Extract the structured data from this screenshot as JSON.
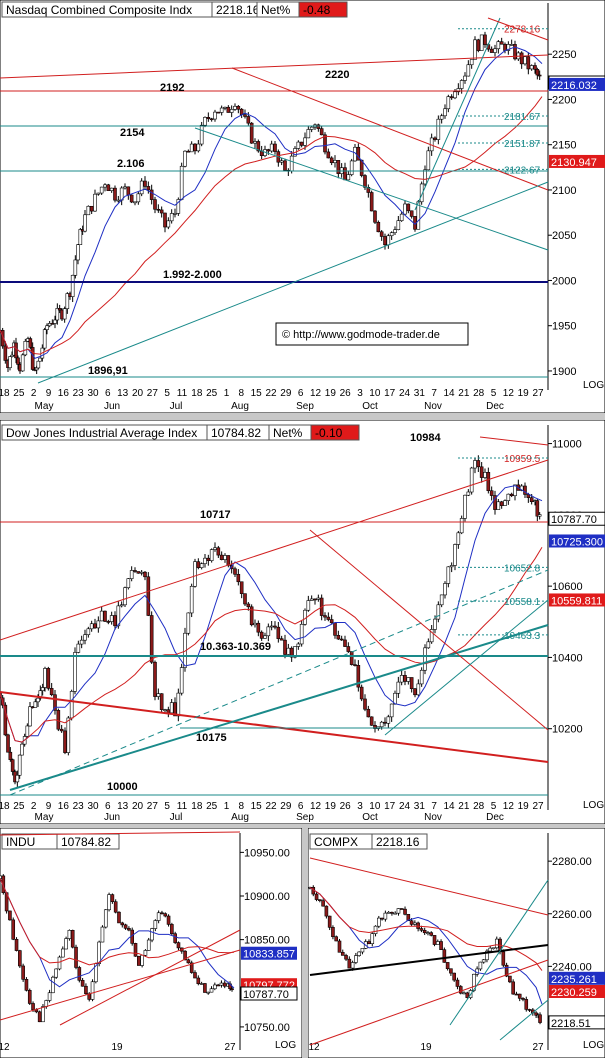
{
  "colors": {
    "up": "#ffffff",
    "down": "#8b1a1a",
    "red_line": "#d11f1f",
    "teal_line": "#1a8a8a",
    "blue_line": "#1f2fc4",
    "navy_line": "#0a0a7a",
    "grid": "#d0d0d0",
    "value_red": "#e01a1a",
    "value_blue": "#1f2fc4"
  },
  "charts": [
    {
      "id": "nasdaq",
      "title": "Nasdaq Combined Composite Indx",
      "last": "2218.16",
      "pct_label": "Net%",
      "pct": "-0.48",
      "watermark": "©  http://www.godmode-trader.de",
      "log_label": "LOG",
      "x_ticks": [
        "18",
        "25",
        "2",
        "9",
        "16",
        "23",
        "30",
        "6",
        "13",
        "20",
        "27",
        "5",
        "11",
        "18",
        "25",
        "1",
        "8",
        "15",
        "22",
        "29",
        "6",
        "12",
        "19",
        "26",
        "3",
        "10",
        "17",
        "24",
        "31",
        "7",
        "14",
        "21",
        "28",
        "5",
        "12",
        "19",
        "27"
      ],
      "x_months": [
        "May",
        "Jun",
        "Jul",
        "Aug",
        "Sep",
        "Oct",
        "Nov",
        "Dec"
      ],
      "y_ticks": [
        "2250",
        "2200",
        "2150",
        "2100",
        "2050",
        "2000",
        "1950",
        "1900"
      ],
      "annotations": [
        "2192",
        "2154",
        "2.106",
        "2220",
        "1.992-2.000",
        "1896,91"
      ],
      "right_labels": [
        "2278.16",
        "2218.16",
        "2216.032",
        "2181.67",
        "2151.87",
        "2122.67",
        "2130.947"
      ],
      "chart_data": {
        "type": "candlestick",
        "ylim": [
          1890,
          2290
        ],
        "close_path_points": [
          [
            0,
            1945
          ],
          [
            8,
            1905
          ],
          [
            14,
            1930
          ],
          [
            20,
            1905
          ],
          [
            28,
            1935
          ],
          [
            35,
            1895
          ],
          [
            40,
            1915
          ],
          [
            47,
            1950
          ],
          [
            55,
            1960
          ],
          [
            62,
            1965
          ],
          [
            70,
            1990
          ],
          [
            78,
            2040
          ],
          [
            85,
            2070
          ],
          [
            95,
            2090
          ],
          [
            105,
            2110
          ],
          [
            115,
            2095
          ],
          [
            125,
            2100
          ],
          [
            135,
            2090
          ],
          [
            145,
            2110
          ],
          [
            155,
            2080
          ],
          [
            165,
            2060
          ],
          [
            175,
            2075
          ],
          [
            185,
            2140
          ],
          [
            195,
            2145
          ],
          [
            205,
            2175
          ],
          [
            215,
            2190
          ],
          [
            225,
            2185
          ],
          [
            235,
            2200
          ],
          [
            245,
            2175
          ],
          [
            255,
            2150
          ],
          [
            265,
            2140
          ],
          [
            275,
            2145
          ],
          [
            285,
            2120
          ],
          [
            295,
            2140
          ],
          [
            305,
            2160
          ],
          [
            315,
            2175
          ],
          [
            325,
            2150
          ],
          [
            335,
            2130
          ],
          [
            345,
            2110
          ],
          [
            355,
            2140
          ],
          [
            365,
            2110
          ],
          [
            375,
            2070
          ],
          [
            385,
            2040
          ],
          [
            395,
            2060
          ],
          [
            405,
            2080
          ],
          [
            415,
            2060
          ],
          [
            425,
            2130
          ],
          [
            435,
            2160
          ],
          [
            445,
            2195
          ],
          [
            455,
            2215
          ],
          [
            465,
            2230
          ],
          [
            475,
            2260
          ],
          [
            485,
            2265
          ],
          [
            495,
            2255
          ],
          [
            505,
            2260
          ],
          [
            515,
            2250
          ],
          [
            525,
            2240
          ],
          [
            535,
            2230
          ],
          [
            542,
            2218
          ]
        ],
        "values": {
          "last": 2218.16,
          "high": 2278.16,
          "low": 1896.91
        }
      }
    },
    {
      "id": "dow",
      "title": "Dow Jones Industrial Average Index",
      "last": "10784.82",
      "pct_label": "Net%",
      "pct": "-0.10",
      "log_label": "LOG",
      "x_ticks": [
        "18",
        "25",
        "2",
        "9",
        "16",
        "23",
        "30",
        "6",
        "13",
        "20",
        "27",
        "5",
        "11",
        "18",
        "25",
        "1",
        "8",
        "15",
        "22",
        "29",
        "6",
        "12",
        "19",
        "26",
        "3",
        "10",
        "17",
        "24",
        "31",
        "7",
        "14",
        "21",
        "28",
        "5",
        "12",
        "19",
        "27"
      ],
      "x_months": [
        "May",
        "Jun",
        "Jul",
        "Aug",
        "Sep",
        "Oct",
        "Nov",
        "Dec"
      ],
      "y_ticks": [
        "11000",
        "10800",
        "10600",
        "10400",
        "10200"
      ],
      "annotations": [
        "10984",
        "10717",
        "10.363-10.369",
        "10175",
        "10000"
      ],
      "right_labels": [
        "10959.5",
        "10787.70",
        "10725.300",
        "10652.8",
        "10558.1",
        "10559.811",
        "10463.3"
      ],
      "chart_data": {
        "type": "candlestick",
        "ylim": [
          10000,
          11010
        ],
        "close_path_points": [
          [
            0,
            10300
          ],
          [
            8,
            10150
          ],
          [
            15,
            10050
          ],
          [
            22,
            10150
          ],
          [
            30,
            10250
          ],
          [
            38,
            10300
          ],
          [
            45,
            10350
          ],
          [
            55,
            10250
          ],
          [
            65,
            10150
          ],
          [
            75,
            10400
          ],
          [
            85,
            10480
          ],
          [
            95,
            10500
          ],
          [
            105,
            10520
          ],
          [
            115,
            10500
          ],
          [
            125,
            10580
          ],
          [
            135,
            10650
          ],
          [
            145,
            10620
          ],
          [
            155,
            10300
          ],
          [
            165,
            10260
          ],
          [
            175,
            10250
          ],
          [
            185,
            10450
          ],
          [
            195,
            10650
          ],
          [
            205,
            10680
          ],
          [
            215,
            10700
          ],
          [
            225,
            10670
          ],
          [
            235,
            10640
          ],
          [
            245,
            10560
          ],
          [
            255,
            10480
          ],
          [
            265,
            10460
          ],
          [
            275,
            10490
          ],
          [
            285,
            10400
          ],
          [
            295,
            10420
          ],
          [
            305,
            10520
          ],
          [
            315,
            10580
          ],
          [
            325,
            10500
          ],
          [
            335,
            10470
          ],
          [
            345,
            10420
          ],
          [
            355,
            10380
          ],
          [
            365,
            10250
          ],
          [
            375,
            10200
          ],
          [
            385,
            10220
          ],
          [
            395,
            10300
          ],
          [
            405,
            10350
          ],
          [
            415,
            10300
          ],
          [
            425,
            10420
          ],
          [
            435,
            10520
          ],
          [
            445,
            10620
          ],
          [
            455,
            10700
          ],
          [
            465,
            10850
          ],
          [
            475,
            10950
          ],
          [
            485,
            10900
          ],
          [
            495,
            10830
          ],
          [
            505,
            10850
          ],
          [
            515,
            10880
          ],
          [
            525,
            10860
          ],
          [
            535,
            10820
          ],
          [
            542,
            10788
          ]
        ],
        "values": {
          "last": 10784.82,
          "high": 10984,
          "low": 10000
        }
      }
    },
    {
      "id": "indu",
      "title": "INDU",
      "last": "10784.82",
      "log_label": "LOG",
      "x_ticks": [
        "12",
        "19",
        "27"
      ],
      "y_ticks": [
        "10950.00",
        "10900.00",
        "10850.00",
        "10750.00"
      ],
      "right_labels": [
        "10833.857",
        "10797.772",
        "10787.70"
      ],
      "chart_data": {
        "type": "candlestick",
        "ylim": [
          10735,
          10955
        ],
        "close_path_points": [
          [
            0,
            10920
          ],
          [
            10,
            10870
          ],
          [
            20,
            10820
          ],
          [
            30,
            10780
          ],
          [
            40,
            10760
          ],
          [
            50,
            10790
          ],
          [
            60,
            10830
          ],
          [
            70,
            10860
          ],
          [
            80,
            10800
          ],
          [
            90,
            10780
          ],
          [
            100,
            10850
          ],
          [
            110,
            10900
          ],
          [
            120,
            10870
          ],
          [
            130,
            10860
          ],
          [
            140,
            10820
          ],
          [
            150,
            10850
          ],
          [
            160,
            10880
          ],
          [
            170,
            10870
          ],
          [
            180,
            10840
          ],
          [
            190,
            10820
          ],
          [
            200,
            10800
          ],
          [
            210,
            10790
          ],
          [
            220,
            10800
          ],
          [
            230,
            10795
          ],
          [
            236,
            10788
          ]
        ],
        "values": {
          "last": 10784.82
        }
      }
    },
    {
      "id": "compx",
      "title": "COMPX",
      "last": "2218.16",
      "log_label": "LOG",
      "x_ticks": [
        "12",
        "19",
        "27"
      ],
      "y_ticks": [
        "2280.00",
        "2260.00",
        "2240.00",
        "2220.00"
      ],
      "right_labels": [
        "2235.261",
        "2230.259",
        "2218.51"
      ],
      "chart_data": {
        "type": "candlestick",
        "ylim": [
          2212,
          2285
        ],
        "close_path_points": [
          [
            0,
            2270
          ],
          [
            10,
            2265
          ],
          [
            20,
            2255
          ],
          [
            30,
            2245
          ],
          [
            40,
            2240
          ],
          [
            50,
            2245
          ],
          [
            60,
            2250
          ],
          [
            70,
            2258
          ],
          [
            80,
            2260
          ],
          [
            90,
            2262
          ],
          [
            100,
            2258
          ],
          [
            110,
            2255
          ],
          [
            120,
            2252
          ],
          [
            130,
            2248
          ],
          [
            140,
            2240
          ],
          [
            150,
            2232
          ],
          [
            160,
            2228
          ],
          [
            170,
            2240
          ],
          [
            180,
            2245
          ],
          [
            190,
            2250
          ],
          [
            200,
            2235
          ],
          [
            210,
            2228
          ],
          [
            220,
            2225
          ],
          [
            230,
            2222
          ],
          [
            236,
            2218
          ]
        ],
        "values": {
          "last": 2218.16
        }
      }
    }
  ]
}
